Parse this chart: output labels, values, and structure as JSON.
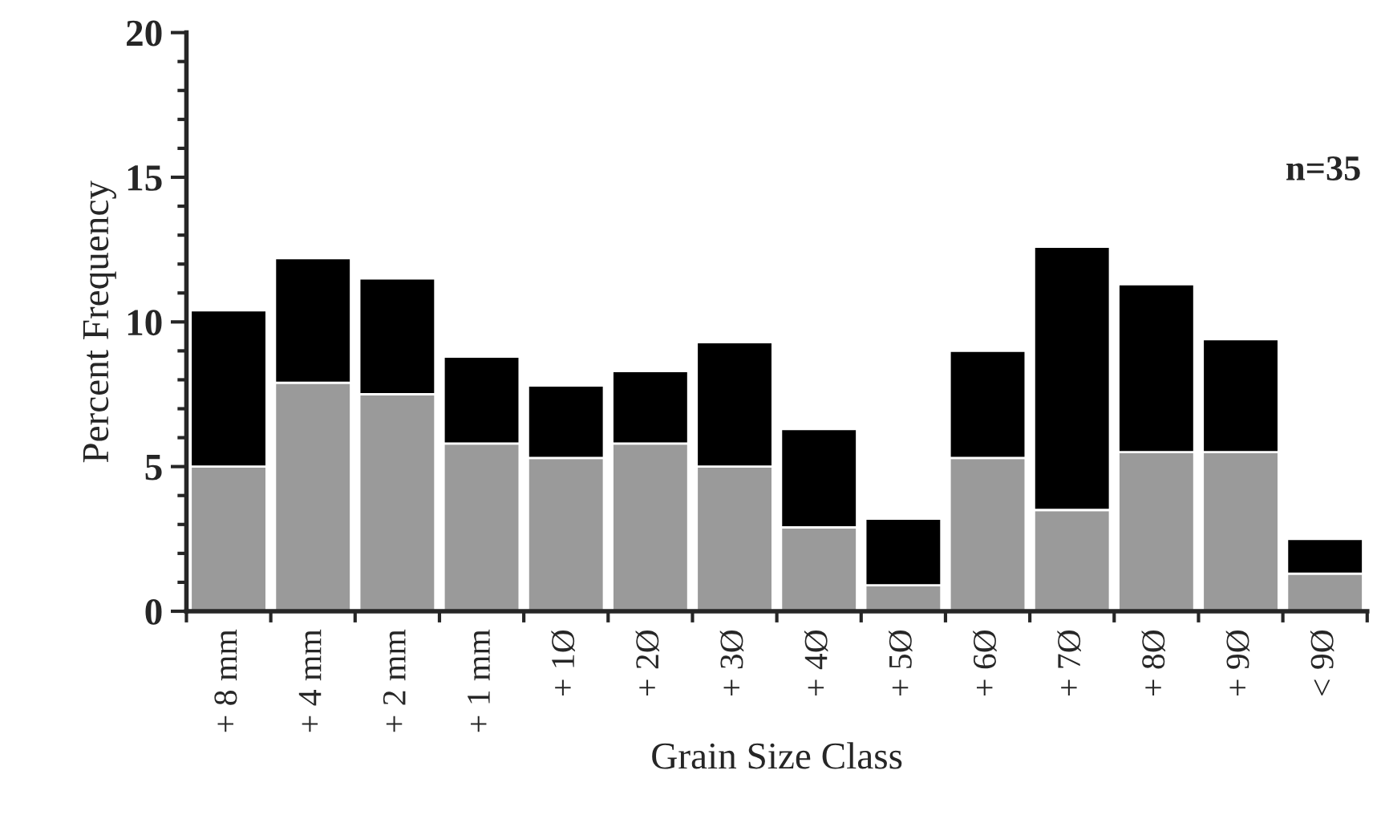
{
  "chart_data": {
    "type": "bar",
    "stacked": true,
    "xlabel": "Grain Size Class",
    "ylabel": "Percent Frequency",
    "categories": [
      "+ 8 mm",
      "+ 4 mm",
      "+ 2 mm",
      "+ 1 mm",
      "+ 1Ø",
      "+ 2Ø",
      "+ 3Ø",
      "+ 4Ø",
      "+ 5Ø",
      "+ 6Ø",
      "+ 7Ø",
      "+ 8Ø",
      "+ 9Ø",
      "< 9Ø"
    ],
    "series": [
      {
        "color": "#9a9a9a",
        "values": [
          5.0,
          7.9,
          7.5,
          5.8,
          5.3,
          5.8,
          5.0,
          2.9,
          0.9,
          5.3,
          3.5,
          5.5,
          5.5,
          1.3
        ]
      },
      {
        "color": "#000000",
        "values": [
          5.4,
          4.3,
          4.0,
          3.0,
          2.5,
          2.5,
          4.3,
          3.4,
          2.3,
          3.7,
          9.1,
          5.8,
          3.9,
          1.2
        ]
      }
    ],
    "ylim": [
      0,
      20
    ],
    "yticks": [
      0,
      5,
      10,
      15,
      20
    ],
    "annotations": [
      "n=35"
    ],
    "grid": false,
    "legend": false
  }
}
